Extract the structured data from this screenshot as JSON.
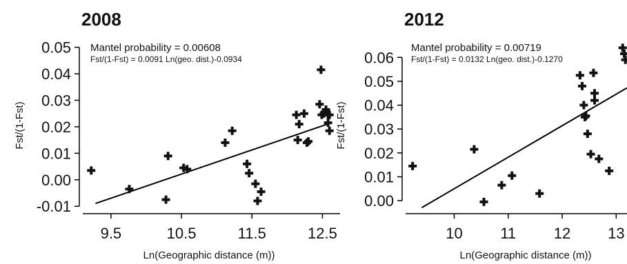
{
  "chart_data": [
    {
      "type": "scatter",
      "title": "2008",
      "xlabel": "Ln(Geographic distance (m))",
      "ylabel": "Fst/(1-Fst)",
      "xlim": [
        9.1,
        12.75
      ],
      "ylim": [
        -0.0115,
        0.0525
      ],
      "xticks": [
        9.5,
        10.5,
        11.5,
        12.5
      ],
      "xtick_labels": [
        "9.5",
        "10.5",
        "11.5",
        "12.5"
      ],
      "yticks": [
        -0.01,
        0.0,
        0.01,
        0.02,
        0.03,
        0.04,
        0.05
      ],
      "ytick_labels": [
        "-0.01",
        "0.00",
        "0.01",
        "0.02",
        "0.03",
        "0.04",
        "0.05"
      ],
      "annotations": [
        "Mantel probability = 0.00608",
        "Fst/(1-Fst) = 0.0091 Ln(geo. dist.)-0.0934"
      ],
      "grid": false,
      "points": {
        "x": [
          9.22,
          9.76,
          10.28,
          10.31,
          10.53,
          10.58,
          11.12,
          11.22,
          11.43,
          11.46,
          11.55,
          11.58,
          11.63,
          12.13,
          12.15,
          12.17,
          12.24,
          12.28,
          12.3,
          12.46,
          12.49,
          12.52,
          12.55,
          12.58,
          12.6,
          12.6,
          12.58,
          12.48
        ],
        "y": [
          0.0035,
          -0.0035,
          -0.0075,
          0.009,
          0.0045,
          0.004,
          0.014,
          0.0185,
          0.006,
          0.0025,
          -0.0015,
          -0.008,
          -0.0045,
          0.0245,
          0.015,
          0.021,
          0.025,
          0.014,
          0.0145,
          0.0285,
          0.0245,
          0.025,
          0.0265,
          0.0245,
          0.0245,
          0.0185,
          0.0215,
          0.0415
        ]
      },
      "fit": {
        "slope": 0.0091,
        "intercept": -0.0934,
        "x_range": [
          9.28,
          12.6
        ]
      }
    },
    {
      "type": "scatter",
      "title": "2012",
      "xlabel": "Ln(Geographic distance (m))",
      "ylabel": "Fst/(1-Fst)",
      "xlim": [
        9.1,
        13.2
      ],
      "ylim": [
        -0.004,
        0.067
      ],
      "xticks": [
        10,
        11,
        12,
        13
      ],
      "xtick_labels": [
        "10",
        "11",
        "12",
        "13"
      ],
      "yticks": [
        0.0,
        0.01,
        0.02,
        0.03,
        0.04,
        0.05,
        0.06
      ],
      "ytick_labels": [
        "0.00",
        "0.01",
        "0.02",
        "0.03",
        "0.04",
        "0.05",
        "0.06"
      ],
      "annotations": [
        "Mantel probability = 0.00719",
        "Fst/(1-Fst) = 0.0132 Ln(geo. dist.)-0.1270"
      ],
      "grid": false,
      "points": {
        "x": [
          9.23,
          10.37,
          10.55,
          10.88,
          11.07,
          11.58,
          12.33,
          12.37,
          12.4,
          12.42,
          12.44,
          12.47,
          12.53,
          12.58,
          12.6,
          12.6,
          12.68,
          12.87,
          13.12,
          13.15,
          13.17
        ],
        "y": [
          0.0145,
          0.0215,
          -0.0005,
          0.0065,
          0.0105,
          0.003,
          0.0525,
          0.048,
          0.04,
          0.035,
          0.0355,
          0.028,
          0.0195,
          0.0535,
          0.045,
          0.042,
          0.0175,
          0.0125,
          0.064,
          0.0615,
          0.059
        ]
      },
      "fit": {
        "slope": 0.0132,
        "intercept": -0.127,
        "x_range": [
          9.4,
          13.2
        ]
      }
    }
  ]
}
